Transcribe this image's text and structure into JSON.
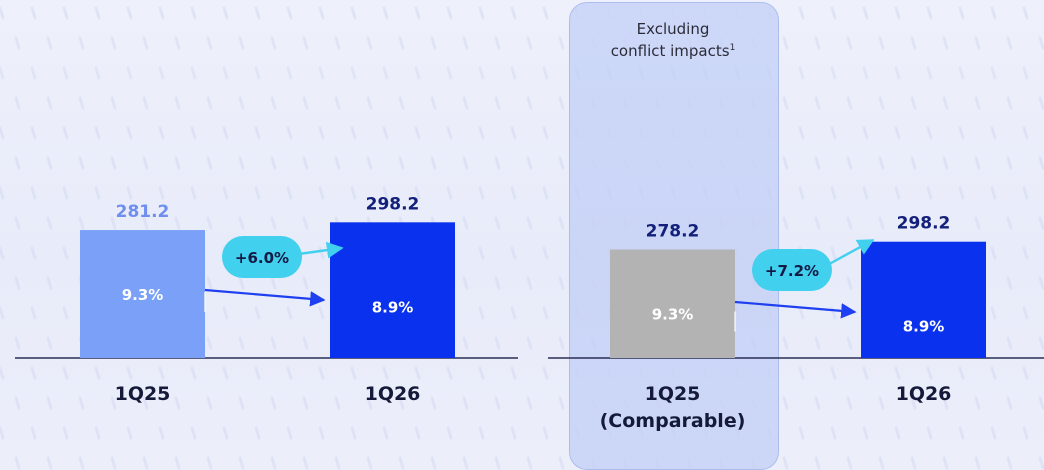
{
  "colors": {
    "bar_light_blue": "#7aa0f7",
    "bar_dark_blue": "#0a31ee",
    "bar_gray": "#b3b3b3",
    "bubble": "#41d0ee",
    "value_light": "#6f8ff0",
    "value_dark": "#13207a",
    "highlight": "#b2c4f5"
  },
  "highlight": {
    "label_line1": "Excluding",
    "label_line2": "conflict impacts",
    "footnote": "1"
  },
  "chart_data": [
    {
      "type": "bar",
      "categories": [
        "1Q25",
        "1Q26"
      ],
      "values": [
        281.2,
        298.2
      ],
      "value_labels": [
        "281.2",
        "298.2"
      ],
      "inner_labels": [
        "9.3%",
        "8.9%"
      ],
      "change_label": "+6.0%",
      "bar_colors": [
        "#7aa0f7",
        "#0a31ee"
      ],
      "title": "",
      "xlabel": "",
      "ylabel": ""
    },
    {
      "type": "bar",
      "categories": [
        "1Q25\n(Comparable)",
        "1Q26"
      ],
      "values": [
        278.2,
        298.2
      ],
      "value_labels": [
        "278.2",
        "298.2"
      ],
      "inner_labels": [
        "9.3%",
        "8.9%"
      ],
      "change_label": "+7.2%",
      "bar_colors": [
        "#b3b3b3",
        "#0a31ee"
      ],
      "title": "",
      "xlabel": "",
      "ylabel": ""
    }
  ]
}
